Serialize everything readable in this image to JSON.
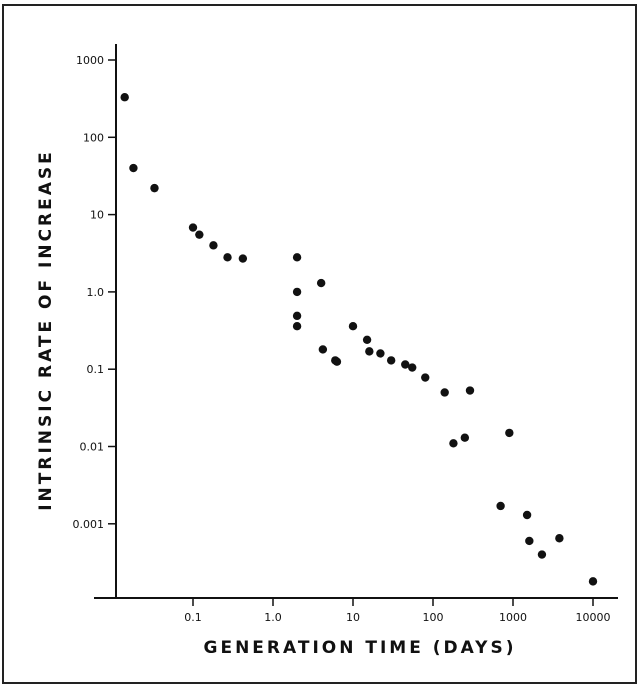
{
  "chart_data": {
    "type": "scatter",
    "title": "",
    "xlabel": "GENERATION TIME (DAYS)",
    "ylabel": "INTRINSIC RATE OF INCREASE",
    "x_scale": "log",
    "y_scale": "log",
    "xlim": [
      0.01,
      15000
    ],
    "ylim": [
      0.0001,
      1500
    ],
    "grid": false,
    "x_ticks": [
      {
        "value": 0.1,
        "label": "0.1"
      },
      {
        "value": 1,
        "label": "1.0"
      },
      {
        "value": 10,
        "label": "10"
      },
      {
        "value": 100,
        "label": "100"
      },
      {
        "value": 1000,
        "label": "1000"
      },
      {
        "value": 10000,
        "label": "10000"
      }
    ],
    "y_ticks": [
      {
        "value": 1000,
        "label": "1000"
      },
      {
        "value": 100,
        "label": "100"
      },
      {
        "value": 10,
        "label": "10"
      },
      {
        "value": 1,
        "label": "1.0"
      },
      {
        "value": 0.1,
        "label": "0.1"
      },
      {
        "value": 0.01,
        "label": "0.01"
      },
      {
        "value": 0.001,
        "label": "0.001"
      }
    ],
    "points": [
      {
        "x": 0.014,
        "y": 330
      },
      {
        "x": 0.018,
        "y": 40
      },
      {
        "x": 0.033,
        "y": 22
      },
      {
        "x": 0.1,
        "y": 6.8
      },
      {
        "x": 0.12,
        "y": 5.5
      },
      {
        "x": 0.18,
        "y": 4
      },
      {
        "x": 0.27,
        "y": 2.8
      },
      {
        "x": 0.42,
        "y": 2.7
      },
      {
        "x": 2.0,
        "y": 2.8
      },
      {
        "x": 2.0,
        "y": 1.0
      },
      {
        "x": 2.0,
        "y": 0.49
      },
      {
        "x": 2.0,
        "y": 0.36
      },
      {
        "x": 4.0,
        "y": 1.3
      },
      {
        "x": 4.2,
        "y": 0.18
      },
      {
        "x": 6.0,
        "y": 0.13
      },
      {
        "x": 6.3,
        "y": 0.125
      },
      {
        "x": 10,
        "y": 0.36
      },
      {
        "x": 15,
        "y": 0.24
      },
      {
        "x": 16,
        "y": 0.17
      },
      {
        "x": 22,
        "y": 0.16
      },
      {
        "x": 30,
        "y": 0.13
      },
      {
        "x": 45,
        "y": 0.115
      },
      {
        "x": 55,
        "y": 0.105
      },
      {
        "x": 80,
        "y": 0.078
      },
      {
        "x": 140,
        "y": 0.05
      },
      {
        "x": 180,
        "y": 0.011
      },
      {
        "x": 250,
        "y": 0.013
      },
      {
        "x": 290,
        "y": 0.053
      },
      {
        "x": 700,
        "y": 0.0017
      },
      {
        "x": 900,
        "y": 0.015
      },
      {
        "x": 1500,
        "y": 0.0013
      },
      {
        "x": 1600,
        "y": 0.0006
      },
      {
        "x": 2300,
        "y": 0.0004
      },
      {
        "x": 3800,
        "y": 0.00065
      },
      {
        "x": 10000,
        "y": 0.00018
      }
    ]
  }
}
